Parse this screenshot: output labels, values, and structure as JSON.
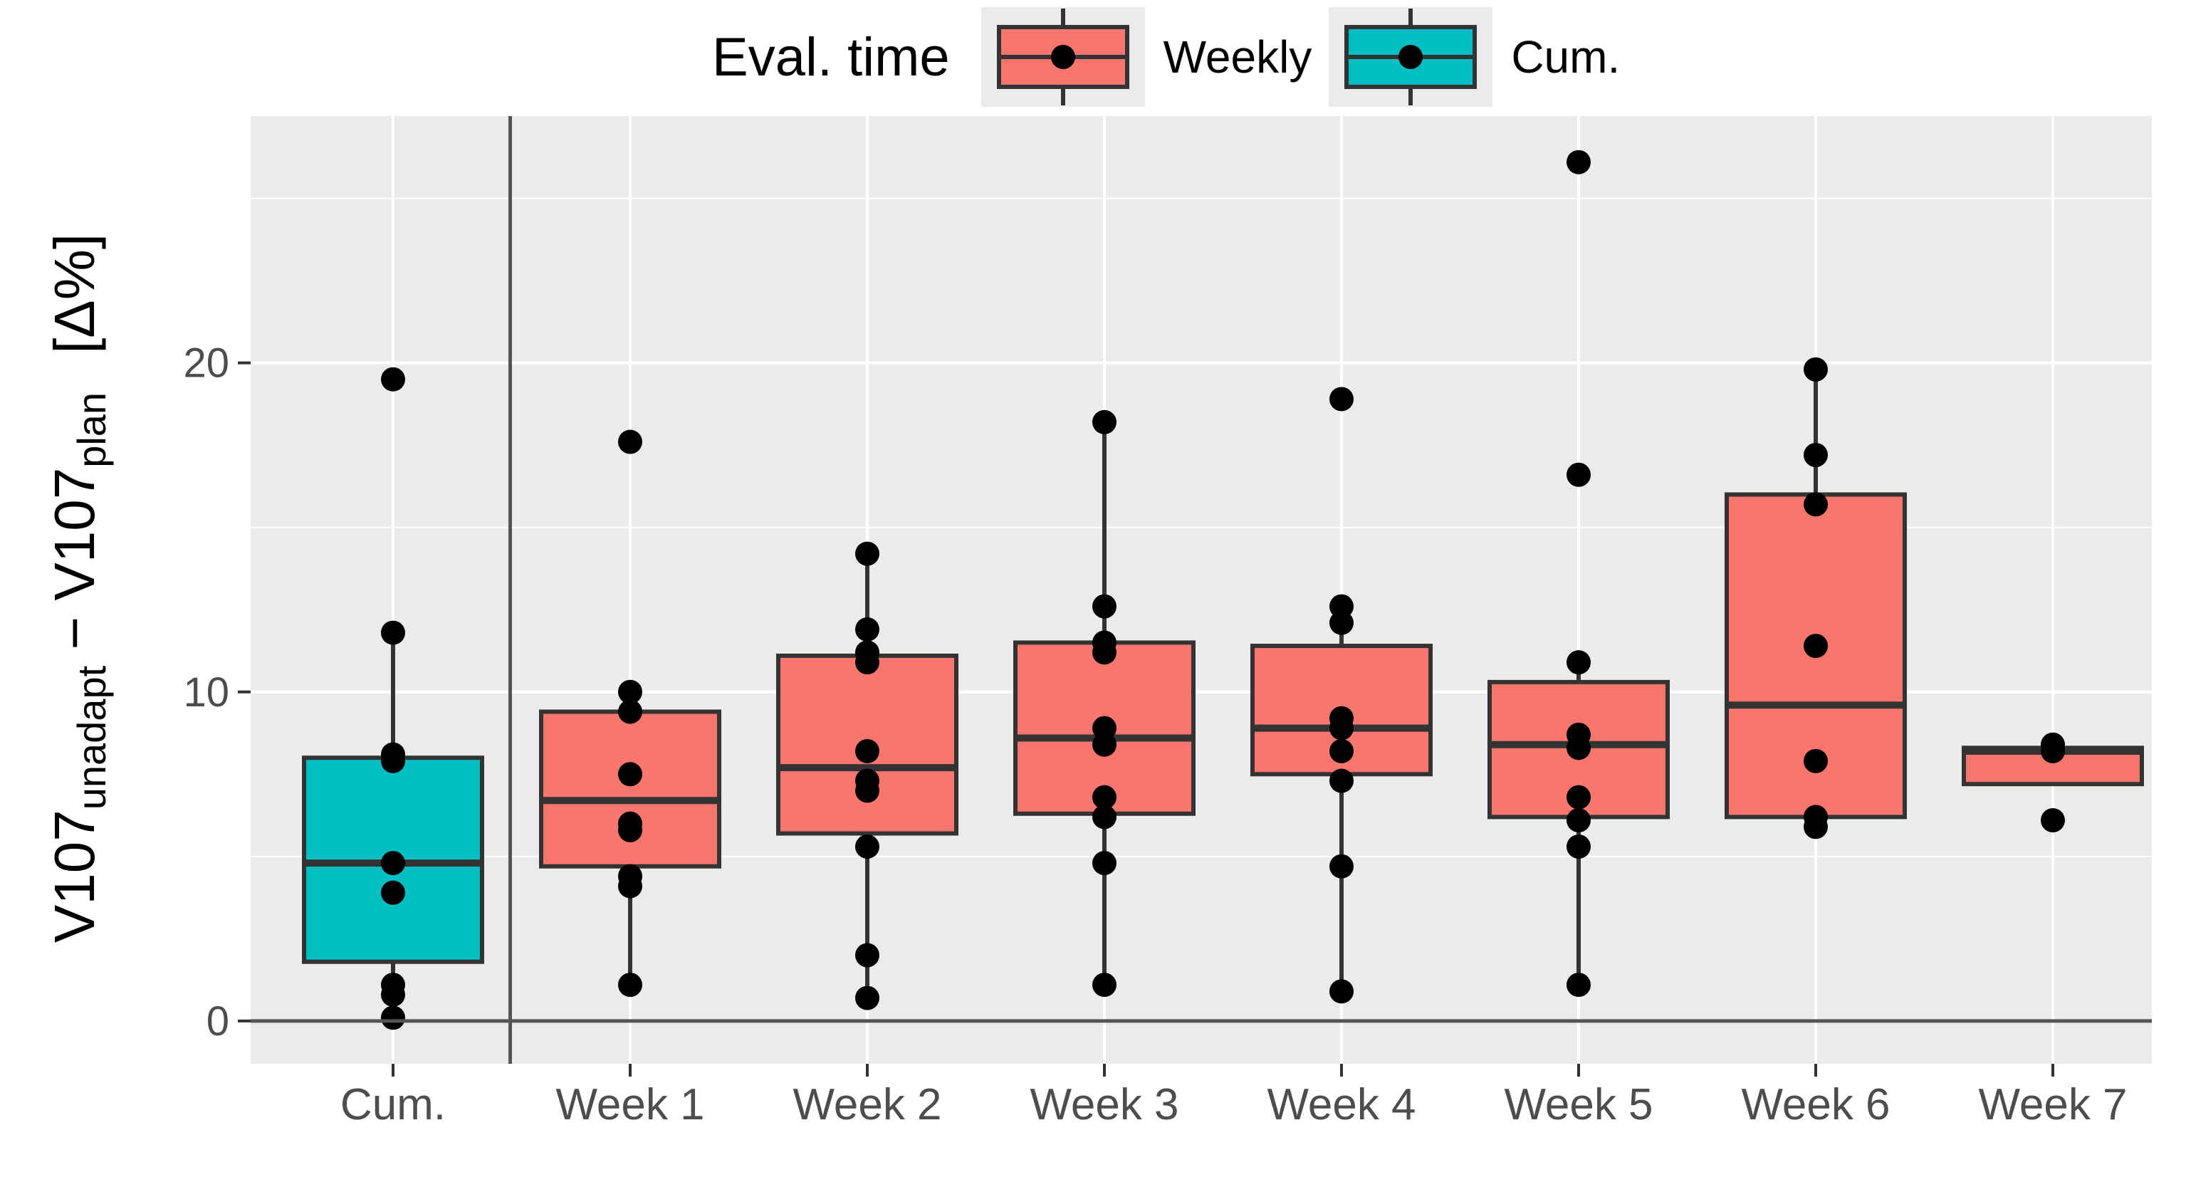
{
  "chart_data": {
    "type": "boxplot",
    "legend": {
      "title": "Eval. time",
      "entries": [
        {
          "name": "Weekly",
          "color": "#F8766D"
        },
        {
          "name": "Cum.",
          "color": "#00BFC4"
        }
      ],
      "position": "top"
    },
    "ylabel": {
      "v1": "V107",
      "sub1": "unadapt",
      "minus": "−",
      "v2": "V107",
      "sub2": "plan",
      "unit": "[Δ%]"
    },
    "ylim": [
      -1.3,
      27.5
    ],
    "yticks": [
      0,
      10,
      20
    ],
    "categories": [
      "Cum.",
      "Week 1",
      "Week 2",
      "Week 3",
      "Week 4",
      "Week 5",
      "Week 6",
      "Week 7"
    ],
    "series": [
      {
        "category": "Cum.",
        "group": "Cum.",
        "q1": 1.8,
        "median": 4.8,
        "q3": 8.0,
        "whisker_low": 0.1,
        "whisker_high": 11.8,
        "points": [
          19.5,
          11.8,
          8.1,
          7.9,
          4.8,
          3.9,
          1.1,
          0.8,
          0.1
        ]
      },
      {
        "category": "Week 1",
        "group": "Weekly",
        "q1": 4.7,
        "median": 6.7,
        "q3": 9.4,
        "whisker_low": 1.1,
        "whisker_high": 10.0,
        "points": [
          17.6,
          10.0,
          9.4,
          7.5,
          6.0,
          5.8,
          4.4,
          4.1,
          1.1
        ]
      },
      {
        "category": "Week 2",
        "group": "Weekly",
        "q1": 5.7,
        "median": 7.7,
        "q3": 11.1,
        "whisker_low": 0.7,
        "whisker_high": 14.2,
        "points": [
          14.2,
          11.9,
          11.2,
          10.9,
          8.2,
          7.3,
          7.0,
          5.3,
          2.0,
          0.7
        ]
      },
      {
        "category": "Week 3",
        "group": "Weekly",
        "q1": 6.3,
        "median": 8.6,
        "q3": 11.5,
        "whisker_low": 1.1,
        "whisker_high": 18.2,
        "points": [
          18.2,
          12.6,
          11.5,
          11.2,
          8.9,
          8.4,
          6.8,
          6.2,
          4.8,
          1.1
        ]
      },
      {
        "category": "Week 4",
        "group": "Weekly",
        "q1": 7.5,
        "median": 8.9,
        "q3": 11.4,
        "whisker_low": 0.9,
        "whisker_high": 12.6,
        "points": [
          18.9,
          12.6,
          12.1,
          9.2,
          8.9,
          8.2,
          7.3,
          4.7,
          0.9
        ]
      },
      {
        "category": "Week 5",
        "group": "Weekly",
        "q1": 6.2,
        "median": 8.4,
        "q3": 10.3,
        "whisker_low": 1.1,
        "whisker_high": 10.9,
        "points": [
          26.1,
          16.6,
          10.9,
          8.7,
          8.3,
          6.8,
          6.1,
          5.3,
          1.1
        ]
      },
      {
        "category": "Week 6",
        "group": "Weekly",
        "q1": 6.2,
        "median": 9.6,
        "q3": 16.0,
        "whisker_low": 5.9,
        "whisker_high": 19.8,
        "points": [
          19.8,
          17.2,
          15.7,
          11.4,
          7.9,
          6.2,
          5.9
        ]
      },
      {
        "category": "Week 7",
        "group": "Weekly",
        "q1": 7.2,
        "median": 8.2,
        "q3": 8.3,
        "whisker_low": 7.2,
        "whisker_high": 8.3,
        "points": [
          8.4,
          8.2,
          6.1
        ]
      }
    ],
    "reference_line_y": 0,
    "separator_after_category": "Cum.",
    "grid": true
  }
}
